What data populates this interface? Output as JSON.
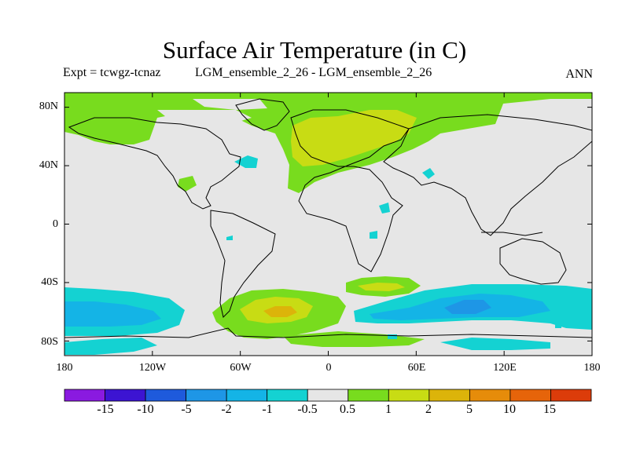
{
  "header": {
    "title": "Surface Air Temperature (in C)",
    "expt": "Expt = tcwgz-tcnaz",
    "runs": "LGM_ensemble_2_26 - LGM_ensemble_2_26",
    "season": "ANN"
  },
  "axes": {
    "y_ticks": [
      "80N",
      "40N",
      "0",
      "40S",
      "80S"
    ],
    "x_ticks": [
      "180",
      "120W",
      "60W",
      "0",
      "60E",
      "120E",
      "180"
    ]
  },
  "colorbar": {
    "labels": [
      "-15",
      "-10",
      "-5",
      "-2",
      "-1",
      "-0.5",
      "0.5",
      "1",
      "2",
      "5",
      "10",
      "15"
    ],
    "colors": [
      "#8a1ae0",
      "#3c14d2",
      "#1e5adc",
      "#1e96e6",
      "#14b4e6",
      "#14d2d2",
      "#e6e6e6",
      "#78dc1e",
      "#c8dc14",
      "#dcb40a",
      "#e68c0a",
      "#e6640a",
      "#dc3c0a"
    ]
  },
  "chart_data": {
    "type": "heatmap",
    "title": "Surface Air Temperature (in C)",
    "field": "difference tcwgz - tcnaz, annual mean",
    "x_range": [
      -180,
      180
    ],
    "y_range": [
      -90,
      90
    ],
    "levels": [
      -15,
      -10,
      -5,
      -2,
      -1,
      -0.5,
      0.5,
      1,
      2,
      5,
      10,
      15
    ],
    "background_class": "-0.5 to 0.5",
    "regions": [
      {
        "name": "north-atlantic-warming",
        "class": "0.5 to 1"
      },
      {
        "name": "scandinavia-warming",
        "class": "1 to 2"
      },
      {
        "name": "arctic-warming-band",
        "class": "0.5 to 1"
      },
      {
        "name": "weddell-sea-warming",
        "class": "0.5 to 1"
      },
      {
        "name": "weddell-sea-core",
        "class": "2 to 5"
      },
      {
        "name": "south-pacific-cooling",
        "class": "-1 to -0.5"
      },
      {
        "name": "southern-indian-cooling",
        "class": "-2 to -1"
      }
    ]
  }
}
